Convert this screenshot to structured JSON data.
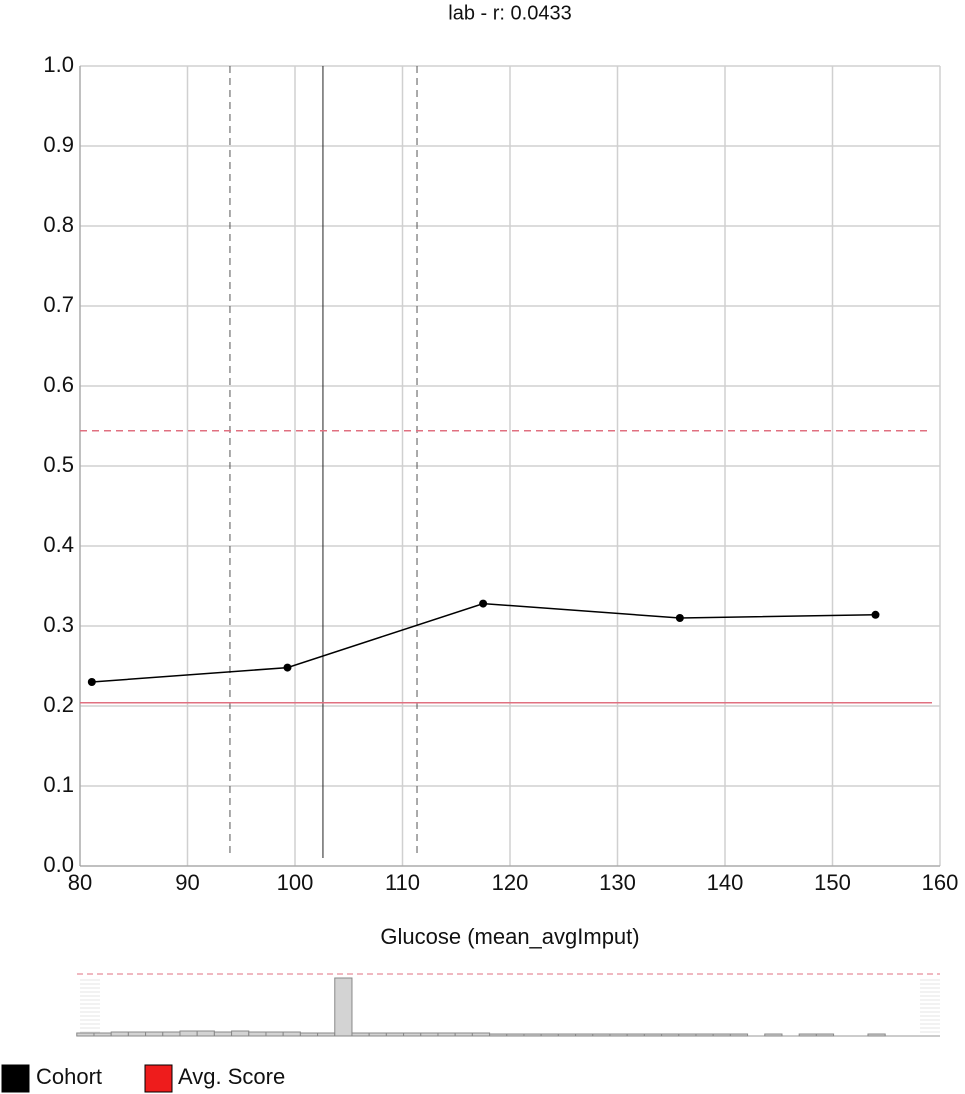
{
  "chart_data": {
    "type": "line",
    "title": "lab - r: 0.0433",
    "x_label": "Glucose (mean_avgImput)",
    "xlim": [
      80,
      160
    ],
    "xticks": [
      80,
      90,
      100,
      110,
      120,
      130,
      140,
      150,
      160
    ],
    "ylim": [
      0,
      1
    ],
    "yticks": [
      {
        "value": 0,
        "label": "0.0"
      },
      0.1,
      0.2,
      0.3,
      0.4,
      0.5,
      0.6,
      0.7,
      0.8,
      0.9,
      {
        "value": 1,
        "label": "1.0"
      }
    ],
    "grid": true,
    "series": [
      {
        "name": "Cohort",
        "color": "#000000",
        "x": [
          81.1,
          99.3,
          117.5,
          135.8,
          154.0
        ],
        "values": [
          0.23,
          0.248,
          0.328,
          0.31,
          0.314
        ]
      }
    ],
    "avg_score": {
      "name": "Avg. Score",
      "color": "#ee1c1c",
      "lines": [
        0.544,
        0.204
      ],
      "styles": [
        "dashed",
        "solid"
      ]
    },
    "markers": {
      "x": [
        93.95,
        102.6,
        111.35
      ],
      "styles": [
        "dashed",
        "solid",
        "dashed"
      ]
    },
    "histogram": {
      "bins": [
        79.7,
        81.3,
        82.9,
        84.5,
        86.1,
        87.7,
        89.3,
        90.9,
        92.5,
        94.1,
        95.7,
        97.3,
        98.9,
        100.5,
        102.1,
        103.7,
        105.3,
        106.9,
        108.5,
        110.1,
        111.7,
        113.3,
        114.9,
        116.5,
        118.1,
        119.7,
        121.3,
        122.9,
        124.5,
        126.1,
        127.7,
        129.3,
        130.9,
        132.5,
        134.1,
        135.7,
        137.3,
        138.9,
        140.5,
        142.1,
        143.7,
        145.3,
        146.9,
        148.5,
        150.1,
        151.7,
        153.3,
        154.9,
        156.5,
        158.1,
        159.7
      ],
      "counts": [
        3,
        3,
        4,
        4,
        4,
        4,
        5,
        5,
        4,
        5,
        4,
        4,
        4,
        3,
        3,
        58,
        3,
        3,
        3,
        3,
        3,
        3,
        3,
        3,
        2,
        2,
        2,
        2,
        2,
        2,
        2,
        2,
        2,
        2,
        2,
        2,
        2,
        2,
        2,
        0,
        2,
        0,
        2,
        2,
        0,
        0,
        2,
        0,
        0,
        0
      ],
      "ylim": [
        0,
        60
      ],
      "color": "#d3d3d3"
    }
  }
}
